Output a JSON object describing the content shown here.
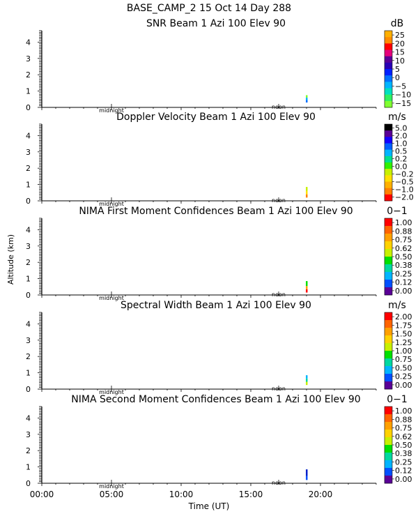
{
  "header": {
    "line1": "BASE_CAMP_2  15 Oct 14 Day 288"
  },
  "common": {
    "y_axis_label": "Altitude (km)",
    "x_axis_label": "Time (UT)",
    "x_ticks": [
      "00:00",
      "05:00",
      "10:00",
      "15:00",
      "20:00"
    ],
    "midnight_label": "midnight",
    "noon_label": "noon",
    "y_ticks": [
      "4",
      "3",
      "2",
      "1",
      "0"
    ]
  },
  "chart_data": [
    {
      "type": "heatmap",
      "title": "SNR Beam 1 Azi 100 Elev 90",
      "unit": "dB",
      "xlim": [
        0,
        24
      ],
      "ylim": [
        0,
        4.7
      ],
      "colorbar_labels": [
        "25",
        "20",
        "15",
        "10",
        "5",
        "0",
        "−5",
        "−10",
        "−15"
      ],
      "colorbar_colors": [
        "#ffb000",
        "#ff8c00",
        "#ff0000",
        "#e6007a",
        "#5a0096",
        "#2a00b4",
        "#0020ff",
        "#0070ff",
        "#00b4ff",
        "#00e0c0",
        "#30f060",
        "#80ff30"
      ],
      "data_segments": [
        {
          "time": 19.0,
          "alt_min": 0.3,
          "alt_max": 0.45,
          "color": "#0070ff"
        },
        {
          "time": 19.0,
          "alt_min": 0.45,
          "alt_max": 0.6,
          "color": "#00b4ff"
        },
        {
          "time": 19.0,
          "alt_min": 0.6,
          "alt_max": 0.75,
          "color": "#80ff30"
        }
      ]
    },
    {
      "type": "heatmap",
      "title": "Doppler Velocity Beam 1 Azi 100 Elev 90",
      "unit": "m/s",
      "xlim": [
        0,
        24
      ],
      "ylim": [
        0,
        4.7
      ],
      "colorbar_labels": [
        "5.0",
        "2.0",
        "1.0",
        "0.5",
        "0.2",
        "0.0",
        "−0.2",
        "−0.5",
        "−1.0",
        "−2.0"
      ],
      "colorbar_colors": [
        "#000000",
        "#5a0096",
        "#1400ff",
        "#0060ff",
        "#00b4ff",
        "#00e08c",
        "#30f000",
        "#c8f000",
        "#ffe000",
        "#ffb000",
        "#ff8000",
        "#ff0000"
      ],
      "data_segments": [
        {
          "time": 19.0,
          "alt_min": 0.2,
          "alt_max": 0.4,
          "color": "#ff8000"
        },
        {
          "time": 19.0,
          "alt_min": 0.4,
          "alt_max": 0.6,
          "color": "#ffe000"
        },
        {
          "time": 19.0,
          "alt_min": 0.6,
          "alt_max": 0.85,
          "color": "#c8f000"
        }
      ]
    },
    {
      "type": "heatmap",
      "title": "NIMA First Moment Confidences Beam 1 Azi 100 Elev 90",
      "unit": "0−1",
      "xlim": [
        0,
        24
      ],
      "ylim": [
        0,
        4.7
      ],
      "colorbar_labels": [
        "1.00",
        "0.88",
        "0.75",
        "0.62",
        "0.50",
        "0.38",
        "0.25",
        "0.12",
        "0.00"
      ],
      "colorbar_colors": [
        "#ff0000",
        "#ff6400",
        "#ffa000",
        "#ffd200",
        "#c8f000",
        "#00e000",
        "#00d8a0",
        "#00b4ff",
        "#0050ff",
        "#5a0096"
      ],
      "data_segments": [
        {
          "time": 19.0,
          "alt_min": 0.15,
          "alt_max": 0.35,
          "color": "#ff0000"
        },
        {
          "time": 19.0,
          "alt_min": 0.35,
          "alt_max": 0.55,
          "color": "#ffa000"
        },
        {
          "time": 19.0,
          "alt_min": 0.55,
          "alt_max": 0.85,
          "color": "#00e000"
        }
      ]
    },
    {
      "type": "heatmap",
      "title": "Spectral Width Beam 1 Azi 100 Elev 90",
      "unit": "m/s",
      "xlim": [
        0,
        24
      ],
      "ylim": [
        0,
        4.7
      ],
      "colorbar_labels": [
        "2.00",
        "1.75",
        "1.50",
        "1.25",
        "1.00",
        "0.75",
        "0.50",
        "0.25",
        "0.00"
      ],
      "colorbar_colors": [
        "#ff0000",
        "#ff6400",
        "#ffa000",
        "#ffd200",
        "#c8f000",
        "#00e000",
        "#00d8a0",
        "#00b4ff",
        "#0050ff",
        "#5a0096"
      ],
      "data_segments": [
        {
          "time": 19.0,
          "alt_min": 0.25,
          "alt_max": 0.45,
          "color": "#c8f000"
        },
        {
          "time": 19.0,
          "alt_min": 0.45,
          "alt_max": 0.65,
          "color": "#00d8a0"
        },
        {
          "time": 19.0,
          "alt_min": 0.65,
          "alt_max": 0.85,
          "color": "#00b4ff"
        }
      ]
    },
    {
      "type": "heatmap",
      "title": "NIMA Second Moment Confidences Beam 1 Azi 100 Elev 90",
      "unit": "0−1",
      "xlim": [
        0,
        24
      ],
      "ylim": [
        0,
        4.7
      ],
      "colorbar_labels": [
        "1.00",
        "0.88",
        "0.75",
        "0.62",
        "0.50",
        "0.38",
        "0.25",
        "0.12",
        "0.00"
      ],
      "colorbar_colors": [
        "#ff0000",
        "#ff6400",
        "#ffa000",
        "#ffd200",
        "#c8f000",
        "#00e000",
        "#00d8a0",
        "#00b4ff",
        "#0050ff",
        "#5a0096"
      ],
      "data_segments": [
        {
          "time": 19.0,
          "alt_min": 0.2,
          "alt_max": 0.45,
          "color": "#0050ff"
        },
        {
          "time": 19.0,
          "alt_min": 0.45,
          "alt_max": 0.85,
          "color": "#0020c8"
        }
      ]
    }
  ]
}
